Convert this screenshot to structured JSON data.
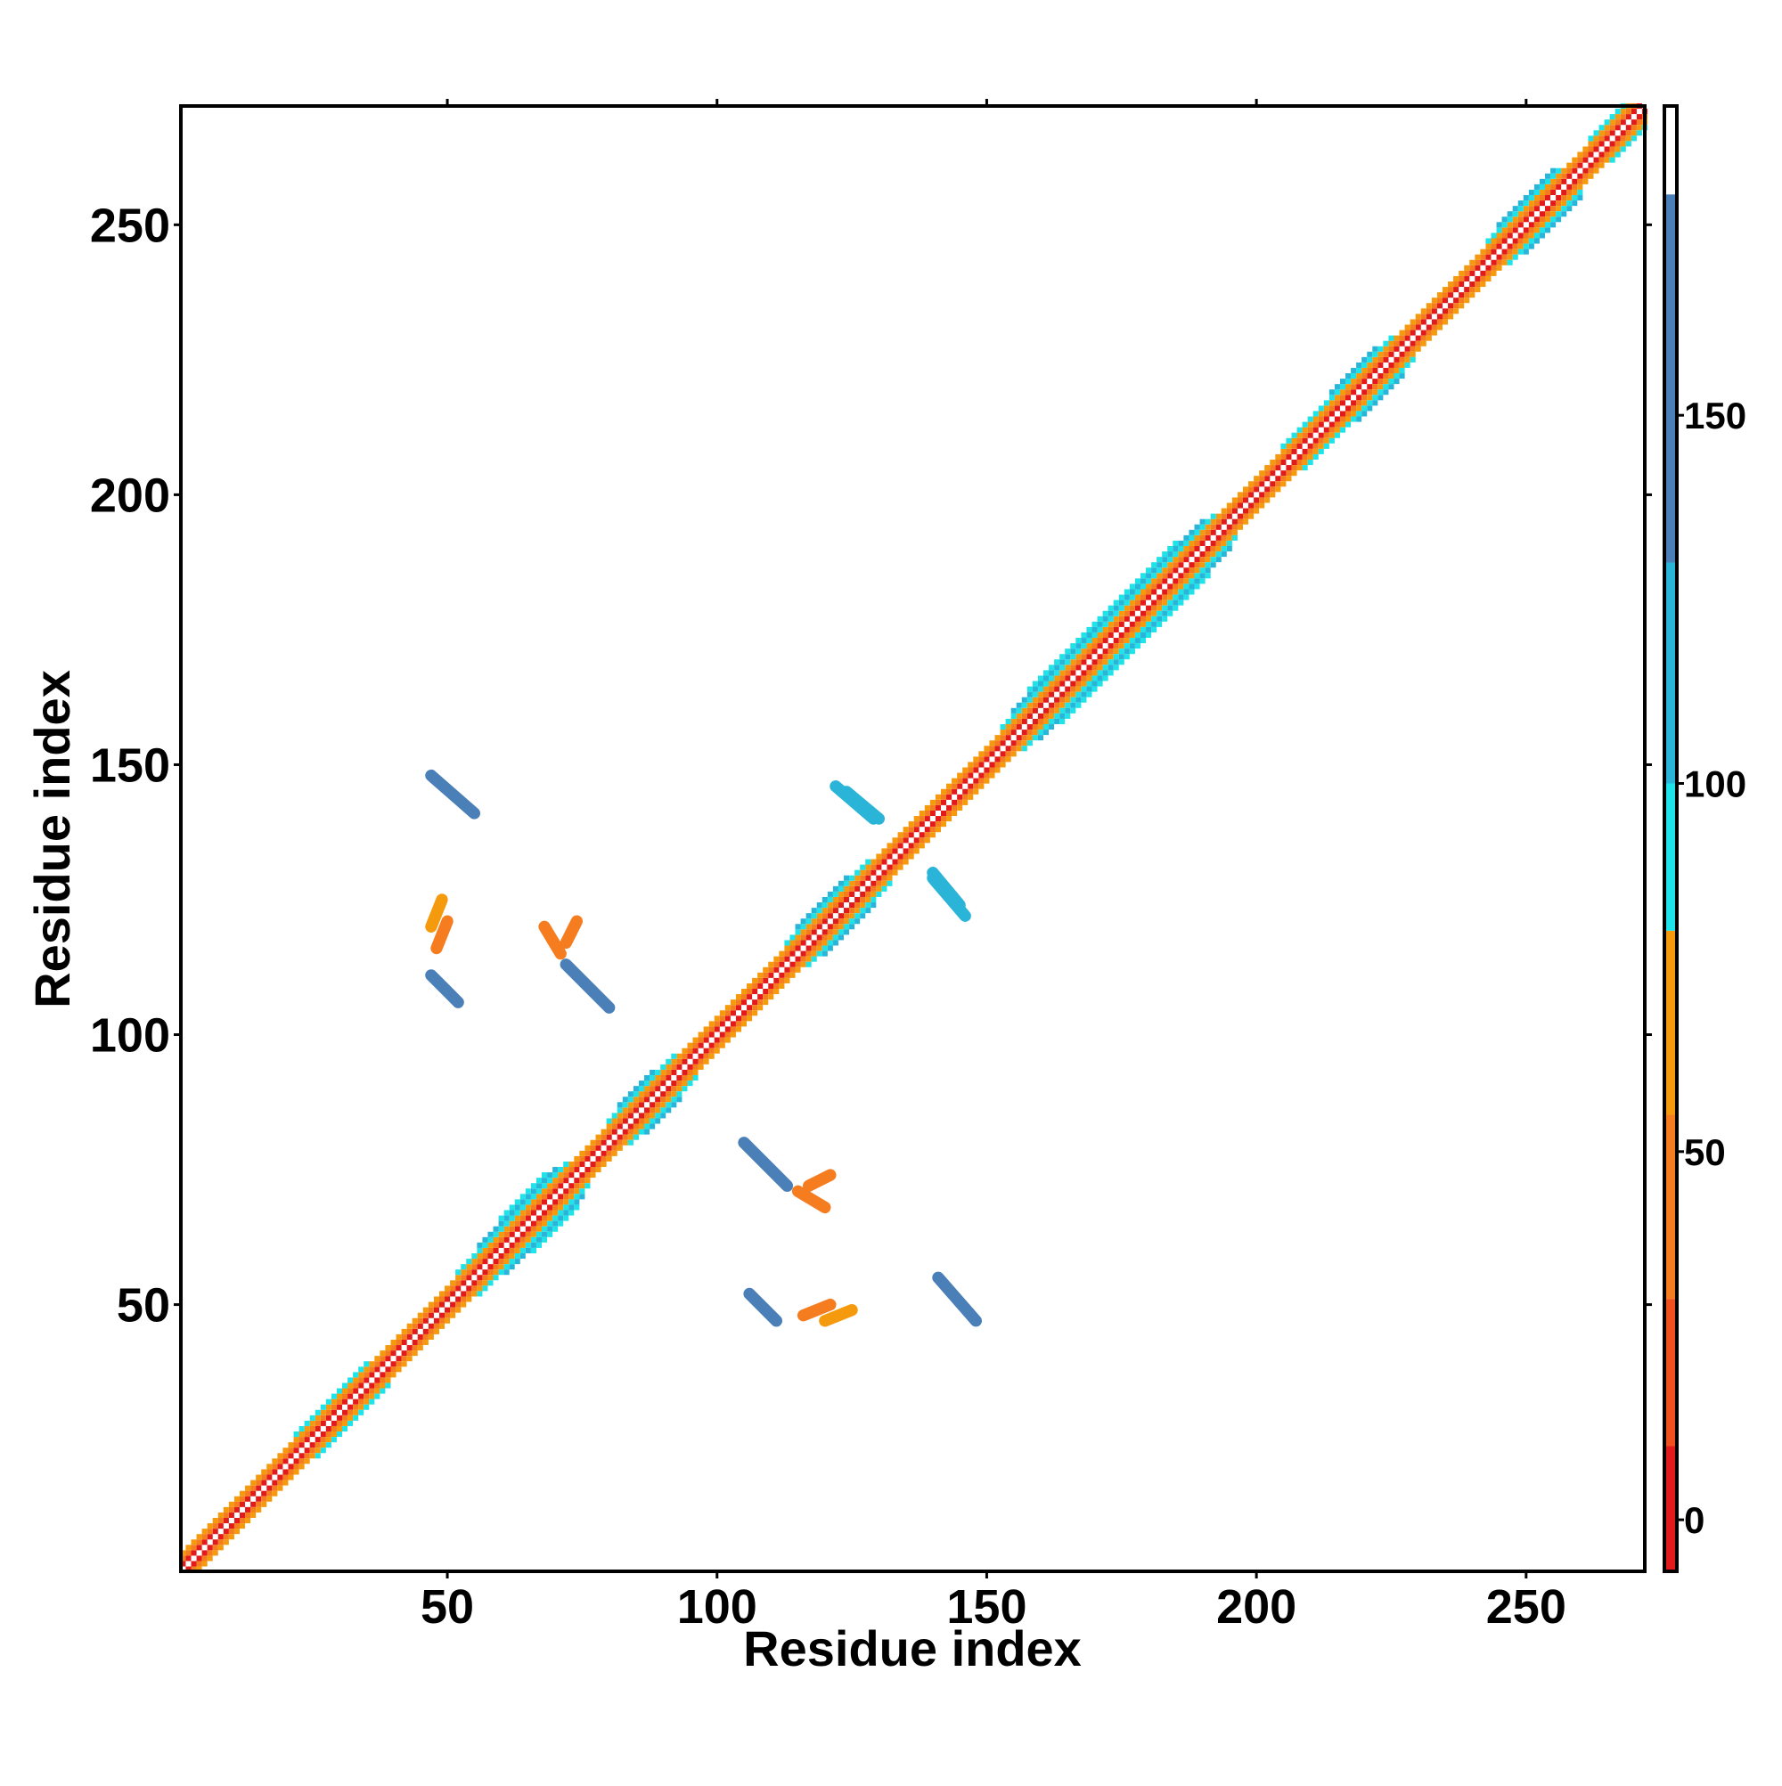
{
  "chart_data": {
    "type": "heatmap",
    "xlabel": "Residue index",
    "ylabel": "Residue index",
    "xlim": [
      0.6,
      272
    ],
    "ylim": [
      0.6,
      272
    ],
    "xticks": [
      50,
      100,
      150,
      200,
      250
    ],
    "yticks": [
      50,
      100,
      150,
      200,
      250
    ],
    "symmetric": true,
    "diagonals": [
      {
        "from": 1,
        "to": 271,
        "offset": 1,
        "value": 8
      },
      {
        "from": 1,
        "to": 270,
        "offset": 2,
        "value": 40
      },
      {
        "from": 1,
        "to": 269,
        "offset": 3,
        "value": 62
      },
      {
        "from": 22,
        "to": 35,
        "offset": 4,
        "value": 92
      },
      {
        "from": 52,
        "to": 72,
        "offset": 4,
        "value": 92
      },
      {
        "from": 80,
        "to": 92,
        "offset": 4,
        "value": 92
      },
      {
        "from": 113,
        "to": 128,
        "offset": 4,
        "value": 92
      },
      {
        "from": 153,
        "to": 192,
        "offset": 4,
        "value": 92
      },
      {
        "from": 205,
        "to": 225,
        "offset": 4,
        "value": 92
      },
      {
        "from": 243,
        "to": 256,
        "offset": 4,
        "value": 92
      },
      {
        "from": 262,
        "to": 268,
        "offset": 4,
        "value": 92
      },
      {
        "from": 56,
        "to": 70,
        "offset": 5,
        "value": 115
      },
      {
        "from": 82,
        "to": 88,
        "offset": 5,
        "value": 115
      },
      {
        "from": 115,
        "to": 124,
        "offset": 5,
        "value": 115
      },
      {
        "from": 155,
        "to": 190,
        "offset": 5,
        "value": 115
      },
      {
        "from": 214,
        "to": 222,
        "offset": 5,
        "value": 115
      },
      {
        "from": 245,
        "to": 255,
        "offset": 5,
        "value": 115
      },
      {
        "from": 158,
        "to": 185,
        "offset": 6,
        "value": 95
      },
      {
        "from": 60,
        "to": 68,
        "offset": 6,
        "value": 95
      }
    ],
    "patches": [
      {
        "x": [
          47,
          55
        ],
        "y": [
          148,
          141
        ],
        "value": 150
      },
      {
        "x": [
          47,
          52
        ],
        "y": [
          111,
          106
        ],
        "value": 150
      },
      {
        "x": [
          72,
          80
        ],
        "y": [
          113,
          105
        ],
        "value": 145
      },
      {
        "x": [
          124,
          130
        ],
        "y": [
          145,
          140
        ],
        "value": 120
      },
      {
        "x": [
          140,
          146
        ],
        "y": [
          129,
          122
        ],
        "value": 120
      },
      {
        "x": [
          47,
          49
        ],
        "y": [
          120,
          125
        ],
        "value": 60
      },
      {
        "x": [
          72,
          74
        ],
        "y": [
          117,
          121
        ],
        "value": 55
      },
      {
        "x": [
          115,
          120
        ],
        "y": [
          71,
          68
        ],
        "value": 55
      },
      {
        "x": [
          116,
          121
        ],
        "y": [
          48,
          50
        ],
        "value": 55
      }
    ],
    "colorbar": {
      "lim": [
        -7,
        192
      ],
      "ticks": [
        0,
        50,
        100,
        150
      ],
      "bands": [
        {
          "from": -7,
          "to": 10,
          "color": "#e31a1c"
        },
        {
          "from": 10,
          "to": 30,
          "color": "#f0501e"
        },
        {
          "from": 30,
          "to": 55,
          "color": "#f57c1f"
        },
        {
          "from": 55,
          "to": 80,
          "color": "#f59a0c"
        },
        {
          "from": 80,
          "to": 100,
          "color": "#1ee3e8"
        },
        {
          "from": 100,
          "to": 130,
          "color": "#2ab5d8"
        },
        {
          "from": 130,
          "to": 180,
          "color": "#4a7fb8"
        },
        {
          "from": 180,
          "to": 192,
          "color": "#ffffff"
        }
      ]
    }
  }
}
